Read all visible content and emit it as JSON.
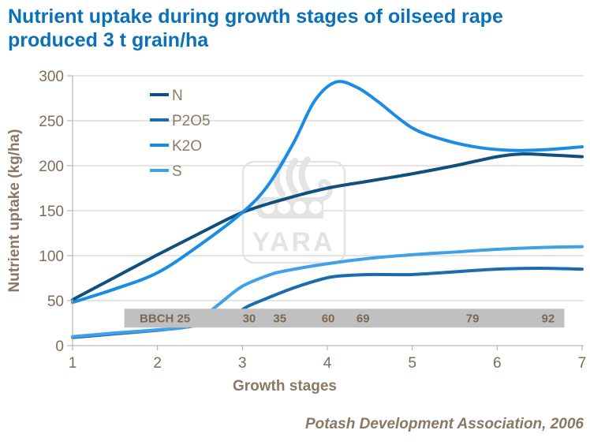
{
  "title": {
    "line1": "Nutrient uptake during growth stages of oilseed rape",
    "line2": "produced 3 t grain/ha"
  },
  "footer": {
    "source": "Potash Development Association, 2006"
  },
  "watermark": {
    "label": "YARA"
  },
  "colors": {
    "title_blue": "#0a70b8",
    "axis_text_brown": "#8a7765",
    "tick_text_brown": "#7d6c58",
    "gridline": "#c9c9c9",
    "axis_line": "#a8a8a8",
    "band_fill": "#c0c0c0",
    "band_text": "#7d6852",
    "watermark_gray": "#e4e4e4",
    "series_N": "#10507f",
    "series_P2O5": "#1a6cb0",
    "series_K2O": "#1b8ce4",
    "series_S": "#41a1e8"
  },
  "chart_data": {
    "type": "line",
    "title": "Nutrient uptake during growth stages of oilseed rape produced 3 t grain/ha",
    "xlabel": "Growth stages",
    "ylabel": "Nutrient uptake (kg/ha)",
    "xlim": [
      1,
      7
    ],
    "ylim": [
      0,
      300
    ],
    "x_ticks": [
      1,
      2,
      3,
      4,
      5,
      6,
      7
    ],
    "y_ticks": [
      0,
      50,
      100,
      150,
      200,
      250,
      300
    ],
    "grid": "horizontal",
    "legend_position": "inside-top-left",
    "series": [
      {
        "name": "N",
        "color": "#10507f",
        "points": [
          [
            1,
            51
          ],
          [
            1.5,
            76
          ],
          [
            2,
            101
          ],
          [
            2.5,
            125
          ],
          [
            3,
            148
          ],
          [
            3.5,
            163
          ],
          [
            4,
            175
          ],
          [
            4.5,
            183
          ],
          [
            5,
            191
          ],
          [
            5.5,
            200
          ],
          [
            6,
            210
          ],
          [
            6.3,
            213
          ],
          [
            6.6,
            212
          ],
          [
            7,
            210
          ]
        ]
      },
      {
        "name": "P2O5",
        "color": "#1a6cb0",
        "points": [
          [
            1,
            9
          ],
          [
            1.5,
            13
          ],
          [
            2,
            17
          ],
          [
            2.3,
            20
          ],
          [
            2.6,
            25
          ],
          [
            2.9,
            34
          ],
          [
            3.05,
            43
          ],
          [
            3.3,
            53
          ],
          [
            3.6,
            64
          ],
          [
            3.9,
            73
          ],
          [
            4.1,
            77
          ],
          [
            4.5,
            79
          ],
          [
            5,
            79
          ],
          [
            5.5,
            82
          ],
          [
            6,
            85
          ],
          [
            6.5,
            86
          ],
          [
            7,
            85
          ]
        ]
      },
      {
        "name": "K2O",
        "color": "#1b8ce4",
        "points": [
          [
            1,
            48
          ],
          [
            1.5,
            63
          ],
          [
            2,
            81
          ],
          [
            2.5,
            112
          ],
          [
            3,
            148
          ],
          [
            3.3,
            178
          ],
          [
            3.6,
            225
          ],
          [
            3.85,
            272
          ],
          [
            4.1,
            293
          ],
          [
            4.35,
            287
          ],
          [
            4.6,
            271
          ],
          [
            5,
            242
          ],
          [
            5.4,
            228
          ],
          [
            5.8,
            220
          ],
          [
            6.2,
            217
          ],
          [
            6.6,
            218
          ],
          [
            7,
            221
          ]
        ]
      },
      {
        "name": "S",
        "color": "#41a1e8",
        "points": [
          [
            1,
            10
          ],
          [
            1.5,
            14
          ],
          [
            2,
            17.5
          ],
          [
            2.35,
            21
          ],
          [
            2.55,
            33
          ],
          [
            2.75,
            48
          ],
          [
            3,
            66
          ],
          [
            3.3,
            78
          ],
          [
            3.5,
            83
          ],
          [
            4,
            91
          ],
          [
            4.5,
            97
          ],
          [
            5,
            101
          ],
          [
            5.5,
            104
          ],
          [
            6,
            107
          ],
          [
            6.5,
            109
          ],
          [
            7,
            110
          ]
        ]
      }
    ],
    "bbch_band": {
      "fill": "#c0c0c0",
      "x_range_stages": [
        1.61,
        6.79
      ],
      "y_range_kgha": [
        20,
        41
      ],
      "stages": [
        {
          "label": "BBCH 25",
          "x": 1.79,
          "align": "start"
        },
        {
          "label": "30",
          "x": 3.08
        },
        {
          "label": "35",
          "x": 3.44
        },
        {
          "label": "60",
          "x": 4.01
        },
        {
          "label": "69",
          "x": 4.42
        },
        {
          "label": "79",
          "x": 5.71
        },
        {
          "label": "92",
          "x": 6.6
        }
      ]
    }
  }
}
